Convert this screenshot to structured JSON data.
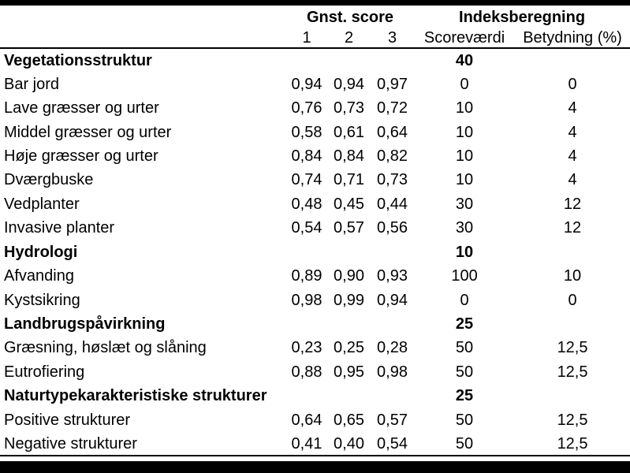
{
  "page": {
    "background_color": "#ffffff",
    "text_color": "#000000",
    "bar_color": "#000000"
  },
  "table": {
    "header_groups": {
      "gnst_score": "Gnst. score",
      "indeksberegning": "Indeksberegning"
    },
    "columns": {
      "score1": "1",
      "score2": "2",
      "score3": "3",
      "scorevaerdi": "Scoreværdi",
      "betydning": "Betydning (%)"
    },
    "rows": [
      {
        "label": "Vegetationsstruktur",
        "bold": true,
        "s1": "",
        "s2": "",
        "s3": "",
        "scorevaerdi": "40",
        "betydning": ""
      },
      {
        "label": "Bar jord",
        "bold": false,
        "s1": "0,94",
        "s2": "0,94",
        "s3": "0,97",
        "scorevaerdi": "0",
        "betydning": "0"
      },
      {
        "label": "Lave græsser og urter",
        "bold": false,
        "s1": "0,76",
        "s2": "0,73",
        "s3": "0,72",
        "scorevaerdi": "10",
        "betydning": "4"
      },
      {
        "label": "Middel græsser og urter",
        "bold": false,
        "s1": "0,58",
        "s2": "0,61",
        "s3": "0,64",
        "scorevaerdi": "10",
        "betydning": "4"
      },
      {
        "label": "Høje græsser og urter",
        "bold": false,
        "s1": "0,84",
        "s2": "0,84",
        "s3": "0,82",
        "scorevaerdi": "10",
        "betydning": "4"
      },
      {
        "label": "Dværgbuske",
        "bold": false,
        "s1": "0,74",
        "s2": "0,71",
        "s3": "0,73",
        "scorevaerdi": "10",
        "betydning": "4"
      },
      {
        "label": "Vedplanter",
        "bold": false,
        "s1": "0,48",
        "s2": "0,45",
        "s3": "0,44",
        "scorevaerdi": "30",
        "betydning": "12"
      },
      {
        "label": "Invasive planter",
        "bold": false,
        "s1": "0,54",
        "s2": "0,57",
        "s3": "0,56",
        "scorevaerdi": "30",
        "betydning": "12"
      },
      {
        "label": "Hydrologi",
        "bold": true,
        "s1": "",
        "s2": "",
        "s3": "",
        "scorevaerdi": "10",
        "betydning": ""
      },
      {
        "label": "Afvanding",
        "bold": false,
        "s1": "0,89",
        "s2": "0,90",
        "s3": "0,93",
        "scorevaerdi": "100",
        "betydning": "10"
      },
      {
        "label": "Kystsikring",
        "bold": false,
        "s1": "0,98",
        "s2": "0,99",
        "s3": "0,94",
        "scorevaerdi": "0",
        "betydning": "0"
      },
      {
        "label": "Landbrugspåvirkning",
        "bold": true,
        "s1": "",
        "s2": "",
        "s3": "",
        "scorevaerdi": "25",
        "betydning": ""
      },
      {
        "label": "Græsning, høslæt og slåning",
        "bold": false,
        "s1": "0,23",
        "s2": "0,25",
        "s3": "0,28",
        "scorevaerdi": "50",
        "betydning": "12,5"
      },
      {
        "label": "Eutrofiering",
        "bold": false,
        "s1": "0,88",
        "s2": "0,95",
        "s3": "0,98",
        "scorevaerdi": "50",
        "betydning": "12,5"
      },
      {
        "label": "Naturtypekarakteristiske strukturer",
        "bold": true,
        "s1": "",
        "s2": "",
        "s3": "",
        "scorevaerdi": "25",
        "betydning": ""
      },
      {
        "label": "Positive strukturer",
        "bold": false,
        "s1": "0,64",
        "s2": "0,65",
        "s3": "0,57",
        "scorevaerdi": "50",
        "betydning": "12,5"
      },
      {
        "label": "Negative strukturer",
        "bold": false,
        "s1": "0,41",
        "s2": "0,40",
        "s3": "0,54",
        "scorevaerdi": "50",
        "betydning": "12,5"
      }
    ]
  }
}
